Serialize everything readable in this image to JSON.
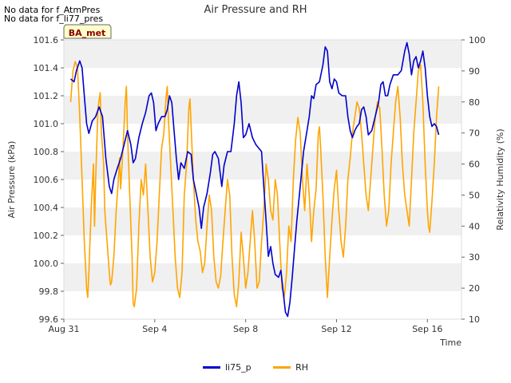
{
  "notices": [
    "No data for f_AtmPres",
    "No data for f_li77_pres"
  ],
  "badge": "BA_met",
  "chart_data": {
    "type": "line",
    "title": "Air Pressure and RH",
    "xlabel": "Time",
    "ylabel_left": "Air Pressure (kPa)",
    "ylabel_right": "Relativity Humidity (%)",
    "xlim": [
      0,
      17.5
    ],
    "ylim_left": [
      99.6,
      101.6
    ],
    "ylim_right": [
      10,
      100
    ],
    "x_ticks": [
      {
        "day": 0,
        "label": "Aug 31"
      },
      {
        "day": 4,
        "label": "Sep 4"
      },
      {
        "day": 8,
        "label": "Sep 8"
      },
      {
        "day": 12,
        "label": "Sep 12"
      },
      {
        "day": 16,
        "label": "Sep 16"
      }
    ],
    "y_ticks_left": [
      99.6,
      99.8,
      100.0,
      100.2,
      100.4,
      100.6,
      100.8,
      101.0,
      101.2,
      101.4,
      101.6
    ],
    "y_ticks_right": [
      10,
      20,
      30,
      40,
      50,
      60,
      70,
      80,
      90,
      100
    ],
    "grid": "horizontal bands",
    "legend": "bottom-center",
    "series": [
      {
        "name": "li75_p",
        "axis": "left",
        "color": "#0000cc",
        "points": [
          [
            0.3,
            101.32
          ],
          [
            0.45,
            101.3
          ],
          [
            0.55,
            101.38
          ],
          [
            0.7,
            101.45
          ],
          [
            0.8,
            101.4
          ],
          [
            0.9,
            101.2
          ],
          [
            1.0,
            101.0
          ],
          [
            1.1,
            100.93
          ],
          [
            1.25,
            101.02
          ],
          [
            1.4,
            101.05
          ],
          [
            1.55,
            101.12
          ],
          [
            1.7,
            101.05
          ],
          [
            1.85,
            100.75
          ],
          [
            2.0,
            100.55
          ],
          [
            2.1,
            100.5
          ],
          [
            2.2,
            100.6
          ],
          [
            2.35,
            100.68
          ],
          [
            2.5,
            100.75
          ],
          [
            2.65,
            100.85
          ],
          [
            2.8,
            100.95
          ],
          [
            2.95,
            100.85
          ],
          [
            3.05,
            100.72
          ],
          [
            3.15,
            100.75
          ],
          [
            3.3,
            100.9
          ],
          [
            3.45,
            101.0
          ],
          [
            3.6,
            101.08
          ],
          [
            3.75,
            101.2
          ],
          [
            3.85,
            101.22
          ],
          [
            3.95,
            101.15
          ],
          [
            4.05,
            100.95
          ],
          [
            4.15,
            101.0
          ],
          [
            4.3,
            101.05
          ],
          [
            4.45,
            101.05
          ],
          [
            4.55,
            101.1
          ],
          [
            4.65,
            101.2
          ],
          [
            4.75,
            101.15
          ],
          [
            4.85,
            100.95
          ],
          [
            4.95,
            100.75
          ],
          [
            5.05,
            100.6
          ],
          [
            5.15,
            100.72
          ],
          [
            5.3,
            100.68
          ],
          [
            5.45,
            100.8
          ],
          [
            5.6,
            100.78
          ],
          [
            5.7,
            100.6
          ],
          [
            5.8,
            100.52
          ],
          [
            5.95,
            100.4
          ],
          [
            6.05,
            100.25
          ],
          [
            6.15,
            100.4
          ],
          [
            6.3,
            100.5
          ],
          [
            6.45,
            100.65
          ],
          [
            6.55,
            100.78
          ],
          [
            6.65,
            100.8
          ],
          [
            6.8,
            100.75
          ],
          [
            6.95,
            100.55
          ],
          [
            7.05,
            100.7
          ],
          [
            7.2,
            100.8
          ],
          [
            7.35,
            100.8
          ],
          [
            7.5,
            101.0
          ],
          [
            7.6,
            101.2
          ],
          [
            7.7,
            101.3
          ],
          [
            7.8,
            101.15
          ],
          [
            7.9,
            100.9
          ],
          [
            8.0,
            100.92
          ],
          [
            8.15,
            101.0
          ],
          [
            8.3,
            100.9
          ],
          [
            8.45,
            100.85
          ],
          [
            8.6,
            100.82
          ],
          [
            8.7,
            100.8
          ],
          [
            8.8,
            100.55
          ],
          [
            8.9,
            100.3
          ],
          [
            9.0,
            100.05
          ],
          [
            9.1,
            100.12
          ],
          [
            9.2,
            100.0
          ],
          [
            9.3,
            99.92
          ],
          [
            9.45,
            99.9
          ],
          [
            9.55,
            99.95
          ],
          [
            9.65,
            99.8
          ],
          [
            9.75,
            99.65
          ],
          [
            9.85,
            99.62
          ],
          [
            9.95,
            99.72
          ],
          [
            10.05,
            99.9
          ],
          [
            10.15,
            100.1
          ],
          [
            10.25,
            100.3
          ],
          [
            10.4,
            100.55
          ],
          [
            10.55,
            100.8
          ],
          [
            10.7,
            100.95
          ],
          [
            10.8,
            101.05
          ],
          [
            10.9,
            101.2
          ],
          [
            11.0,
            101.18
          ],
          [
            11.1,
            101.28
          ],
          [
            11.25,
            101.3
          ],
          [
            11.4,
            101.42
          ],
          [
            11.5,
            101.55
          ],
          [
            11.6,
            101.52
          ],
          [
            11.7,
            101.3
          ],
          [
            11.8,
            101.25
          ],
          [
            11.9,
            101.32
          ],
          [
            12.0,
            101.3
          ],
          [
            12.1,
            101.22
          ],
          [
            12.25,
            101.2
          ],
          [
            12.4,
            101.2
          ],
          [
            12.5,
            101.05
          ],
          [
            12.6,
            100.95
          ],
          [
            12.7,
            100.9
          ],
          [
            12.8,
            100.95
          ],
          [
            12.9,
            100.98
          ],
          [
            13.0,
            101.0
          ],
          [
            13.1,
            101.1
          ],
          [
            13.2,
            101.12
          ],
          [
            13.3,
            101.05
          ],
          [
            13.4,
            100.92
          ],
          [
            13.55,
            100.95
          ],
          [
            13.7,
            101.05
          ],
          [
            13.85,
            101.15
          ],
          [
            13.95,
            101.28
          ],
          [
            14.05,
            101.3
          ],
          [
            14.15,
            101.2
          ],
          [
            14.25,
            101.2
          ],
          [
            14.35,
            101.28
          ],
          [
            14.5,
            101.35
          ],
          [
            14.7,
            101.35
          ],
          [
            14.85,
            101.38
          ],
          [
            15.0,
            101.52
          ],
          [
            15.1,
            101.58
          ],
          [
            15.2,
            101.5
          ],
          [
            15.3,
            101.35
          ],
          [
            15.4,
            101.45
          ],
          [
            15.5,
            101.48
          ],
          [
            15.6,
            101.4
          ],
          [
            15.7,
            101.45
          ],
          [
            15.8,
            101.52
          ],
          [
            15.9,
            101.4
          ],
          [
            16.0,
            101.2
          ],
          [
            16.1,
            101.05
          ],
          [
            16.2,
            100.98
          ],
          [
            16.3,
            101.0
          ],
          [
            16.4,
            100.98
          ],
          [
            16.5,
            100.92
          ]
        ]
      },
      {
        "name": "RH",
        "axis": "right",
        "color": "#ffa500",
        "points": [
          [
            0.3,
            80
          ],
          [
            0.4,
            90
          ],
          [
            0.5,
            93
          ],
          [
            0.6,
            91
          ],
          [
            0.7,
            75
          ],
          [
            0.8,
            55
          ],
          [
            0.9,
            35
          ],
          [
            1.0,
            20
          ],
          [
            1.05,
            17
          ],
          [
            1.1,
            25
          ],
          [
            1.2,
            45
          ],
          [
            1.3,
            60
          ],
          [
            1.35,
            40
          ],
          [
            1.4,
            55
          ],
          [
            1.5,
            78
          ],
          [
            1.6,
            83
          ],
          [
            1.65,
            70
          ],
          [
            1.75,
            60
          ],
          [
            1.8,
            45
          ],
          [
            1.9,
            35
          ],
          [
            2.0,
            25
          ],
          [
            2.05,
            21
          ],
          [
            2.1,
            22
          ],
          [
            2.2,
            30
          ],
          [
            2.3,
            45
          ],
          [
            2.4,
            55
          ],
          [
            2.45,
            62
          ],
          [
            2.5,
            52
          ],
          [
            2.6,
            65
          ],
          [
            2.7,
            80
          ],
          [
            2.75,
            85
          ],
          [
            2.8,
            70
          ],
          [
            2.9,
            50
          ],
          [
            3.0,
            30
          ],
          [
            3.05,
            15
          ],
          [
            3.1,
            14
          ],
          [
            3.2,
            20
          ],
          [
            3.3,
            40
          ],
          [
            3.4,
            55
          ],
          [
            3.5,
            50
          ],
          [
            3.6,
            60
          ],
          [
            3.7,
            45
          ],
          [
            3.8,
            30
          ],
          [
            3.9,
            22
          ],
          [
            4.0,
            25
          ],
          [
            4.1,
            35
          ],
          [
            4.2,
            50
          ],
          [
            4.3,
            65
          ],
          [
            4.4,
            70
          ],
          [
            4.5,
            82
          ],
          [
            4.55,
            85
          ],
          [
            4.6,
            75
          ],
          [
            4.7,
            60
          ],
          [
            4.8,
            45
          ],
          [
            4.9,
            30
          ],
          [
            5.0,
            20
          ],
          [
            5.1,
            17
          ],
          [
            5.2,
            25
          ],
          [
            5.3,
            50
          ],
          [
            5.4,
            60
          ],
          [
            5.5,
            78
          ],
          [
            5.55,
            81
          ],
          [
            5.6,
            72
          ],
          [
            5.7,
            55
          ],
          [
            5.8,
            42
          ],
          [
            5.9,
            35
          ],
          [
            6.0,
            32
          ],
          [
            6.1,
            25
          ],
          [
            6.2,
            28
          ],
          [
            6.3,
            40
          ],
          [
            6.4,
            50
          ],
          [
            6.5,
            45
          ],
          [
            6.6,
            30
          ],
          [
            6.7,
            22
          ],
          [
            6.8,
            20
          ],
          [
            6.9,
            24
          ],
          [
            7.0,
            35
          ],
          [
            7.1,
            45
          ],
          [
            7.2,
            55
          ],
          [
            7.3,
            50
          ],
          [
            7.4,
            30
          ],
          [
            7.5,
            18
          ],
          [
            7.6,
            14
          ],
          [
            7.7,
            22
          ],
          [
            7.8,
            38
          ],
          [
            7.9,
            30
          ],
          [
            8.0,
            20
          ],
          [
            8.1,
            25
          ],
          [
            8.2,
            35
          ],
          [
            8.3,
            45
          ],
          [
            8.4,
            35
          ],
          [
            8.5,
            20
          ],
          [
            8.6,
            22
          ],
          [
            8.7,
            35
          ],
          [
            8.8,
            45
          ],
          [
            8.9,
            60
          ],
          [
            9.0,
            55
          ],
          [
            9.1,
            45
          ],
          [
            9.2,
            42
          ],
          [
            9.3,
            55
          ],
          [
            9.4,
            50
          ],
          [
            9.5,
            35
          ],
          [
            9.6,
            20
          ],
          [
            9.7,
            17
          ],
          [
            9.8,
            25
          ],
          [
            9.9,
            40
          ],
          [
            10.0,
            35
          ],
          [
            10.1,
            55
          ],
          [
            10.2,
            68
          ],
          [
            10.3,
            75
          ],
          [
            10.4,
            70
          ],
          [
            10.5,
            55
          ],
          [
            10.6,
            45
          ],
          [
            10.7,
            60
          ],
          [
            10.8,
            50
          ],
          [
            10.9,
            35
          ],
          [
            11.0,
            45
          ],
          [
            11.1,
            52
          ],
          [
            11.2,
            70
          ],
          [
            11.25,
            72
          ],
          [
            11.3,
            65
          ],
          [
            11.4,
            50
          ],
          [
            11.5,
            30
          ],
          [
            11.6,
            17
          ],
          [
            11.7,
            30
          ],
          [
            11.8,
            42
          ],
          [
            11.9,
            52
          ],
          [
            12.0,
            58
          ],
          [
            12.1,
            45
          ],
          [
            12.2,
            35
          ],
          [
            12.3,
            30
          ],
          [
            12.4,
            40
          ],
          [
            12.5,
            55
          ],
          [
            12.6,
            62
          ],
          [
            12.7,
            70
          ],
          [
            12.8,
            75
          ],
          [
            12.9,
            80
          ],
          [
            13.0,
            78
          ],
          [
            13.1,
            70
          ],
          [
            13.2,
            60
          ],
          [
            13.3,
            50
          ],
          [
            13.4,
            45
          ],
          [
            13.5,
            55
          ],
          [
            13.6,
            65
          ],
          [
            13.7,
            75
          ],
          [
            13.8,
            80
          ],
          [
            13.9,
            78
          ],
          [
            14.0,
            65
          ],
          [
            14.1,
            50
          ],
          [
            14.2,
            40
          ],
          [
            14.3,
            45
          ],
          [
            14.4,
            60
          ],
          [
            14.5,
            70
          ],
          [
            14.6,
            80
          ],
          [
            14.7,
            85
          ],
          [
            14.8,
            75
          ],
          [
            14.9,
            60
          ],
          [
            15.0,
            50
          ],
          [
            15.1,
            45
          ],
          [
            15.2,
            40
          ],
          [
            15.3,
            55
          ],
          [
            15.4,
            70
          ],
          [
            15.5,
            80
          ],
          [
            15.6,
            90
          ],
          [
            15.7,
            92
          ],
          [
            15.8,
            80
          ],
          [
            15.9,
            60
          ],
          [
            16.0,
            45
          ],
          [
            16.05,
            40
          ],
          [
            16.1,
            38
          ],
          [
            16.2,
            48
          ],
          [
            16.3,
            60
          ],
          [
            16.4,
            75
          ],
          [
            16.5,
            85
          ]
        ]
      }
    ]
  }
}
